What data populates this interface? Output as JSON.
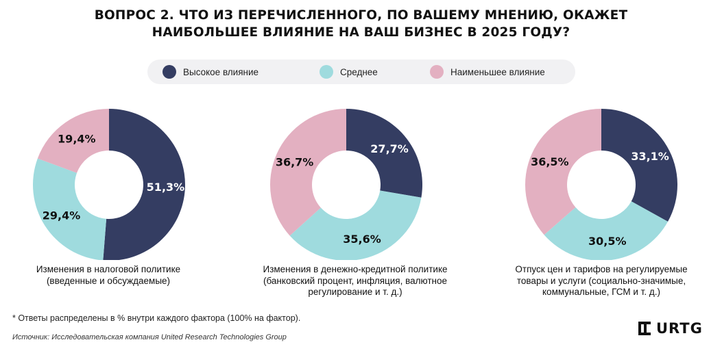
{
  "title": {
    "line1": "ВОПРОС 2. ЧТО ИЗ ПЕРЕЧИСЛЕННОГО, ПО ВАШЕМУ МНЕНИЮ, ОКАЖЕТ",
    "line2": "НАИБОЛЬШЕЕ ВЛИЯНИЕ НА ВАШ БИЗНЕС В 2025 ГОДУ?"
  },
  "legend": [
    {
      "label": "Высокое влияние",
      "color": "#343d62"
    },
    {
      "label": "Среднее",
      "color": "#9fdbde"
    },
    {
      "label": "Наименьшее влияние",
      "color": "#e3b0c1"
    }
  ],
  "chart_data": [
    {
      "type": "pie",
      "title": "",
      "caption_lines": [
        "Изменения в налоговой политике",
        "(введенные и обсуждаемые)"
      ],
      "categories": [
        "Высокое влияние",
        "Среднее",
        "Наименьшее влияние"
      ],
      "values": [
        51.3,
        29.4,
        19.4
      ],
      "value_labels": [
        "51,3%",
        "29,4%",
        "19,4%"
      ]
    },
    {
      "type": "pie",
      "title": "",
      "caption_lines": [
        "Изменения в денежно-кредитной политике",
        "(банковский  процент, инфляция, валютное",
        "регулирование и т. д.)"
      ],
      "categories": [
        "Высокое влияние",
        "Среднее",
        "Наименьшее влияние"
      ],
      "values": [
        27.7,
        35.6,
        36.7
      ],
      "value_labels": [
        "27,7%",
        "35,6%",
        "36,7%"
      ]
    },
    {
      "type": "pie",
      "title": "",
      "caption_lines": [
        "Отпуск цен и тарифов на регулируемые",
        "товары и услуги (социально-значимые,",
        "коммунальные, ГСМ и т. д.)"
      ],
      "categories": [
        "Высокое влияние",
        "Среднее",
        "Наименьшее влияние"
      ],
      "values": [
        33.1,
        30.5,
        36.5
      ],
      "value_labels": [
        "33,1%",
        "30,5%",
        "36,5%"
      ]
    }
  ],
  "footnote": "* Ответы распределены в % внутри каждого фактора (100% на фактор).",
  "source": "Источник: Исследовательская компания United Research Technologies Group",
  "logo": {
    "text": "URTG"
  }
}
